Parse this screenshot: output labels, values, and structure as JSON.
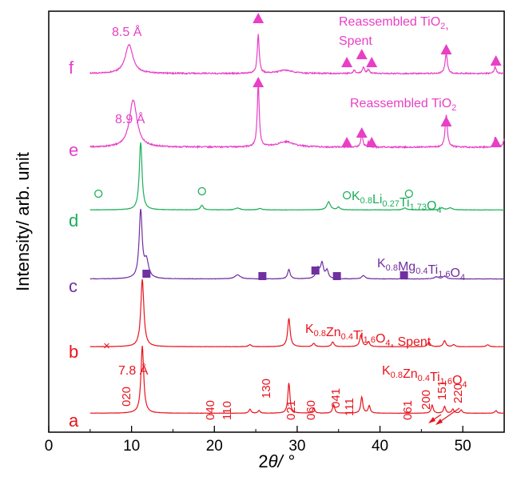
{
  "chart_data": {
    "type": "line",
    "xlabel_prefix": "2",
    "xlabel_theta": "θ",
    "xlabel_suffix": "/ °",
    "ylabel": "Intensity/ arb. unit",
    "xlim": [
      0,
      55
    ],
    "xticks": [
      "0",
      "10",
      "20",
      "30",
      "40",
      "50"
    ],
    "colors": {
      "magenta": "#e83fc6",
      "green": "#1cae5a",
      "purple": "#7030a0",
      "red": "#e8141d",
      "axis": "#000000"
    },
    "series": [
      {
        "id": "a",
        "label": "a",
        "color": "#e8141d",
        "baseline_level": 0.955,
        "scale": 0.16,
        "peaks": [
          [
            11.3,
            1.0,
            0.2
          ],
          [
            24.3,
            0.06,
            0.15
          ],
          [
            25.4,
            0.04,
            0.15
          ],
          [
            29.0,
            0.45,
            0.15
          ],
          [
            32.0,
            0.08,
            0.15
          ],
          [
            34.4,
            0.13,
            0.15
          ],
          [
            37.8,
            0.24,
            0.15
          ],
          [
            38.7,
            0.11,
            0.15
          ],
          [
            46.3,
            0.12,
            0.15
          ],
          [
            47.8,
            0.1,
            0.15
          ],
          [
            48.8,
            0.06,
            0.15
          ],
          [
            49.8,
            0.05,
            0.15
          ],
          [
            54.0,
            0.04,
            0.15
          ]
        ],
        "noise": 0.004
      },
      {
        "id": "b",
        "label": "b",
        "color": "#e8141d",
        "baseline_level": 0.797,
        "scale": 0.16,
        "peaks": [
          [
            11.3,
            1.0,
            0.22
          ],
          [
            24.3,
            0.03,
            0.2
          ],
          [
            29.0,
            0.42,
            0.18
          ],
          [
            32.0,
            0.05,
            0.18
          ],
          [
            34.3,
            0.07,
            0.18
          ],
          [
            37.7,
            0.17,
            0.18
          ],
          [
            38.6,
            0.07,
            0.18
          ],
          [
            45.9,
            0.07,
            0.18
          ],
          [
            47.8,
            0.09,
            0.18
          ],
          [
            48.9,
            0.03,
            0.18
          ],
          [
            53.0,
            0.03,
            0.18
          ]
        ],
        "noise": 0.004
      },
      {
        "id": "c",
        "label": "c",
        "color": "#7030a0",
        "baseline_level": 0.636,
        "scale": 0.16,
        "peaks": [
          [
            11.1,
            1.0,
            0.22
          ],
          [
            11.8,
            0.25,
            0.3
          ],
          [
            22.8,
            0.06,
            0.4
          ],
          [
            29.0,
            0.14,
            0.18
          ],
          [
            32.5,
            0.15,
            0.25
          ],
          [
            33.0,
            0.22,
            0.2
          ],
          [
            33.6,
            0.12,
            0.2
          ],
          [
            38.0,
            0.05,
            0.25
          ],
          [
            46.8,
            0.03,
            0.3
          ],
          [
            47.8,
            0.04,
            0.25
          ]
        ],
        "noise": 0.006
      },
      {
        "id": "d",
        "label": "d",
        "color": "#1cae5a",
        "baseline_level": 0.472,
        "scale": 0.16,
        "peaks": [
          [
            11.1,
            1.0,
            0.2
          ],
          [
            18.5,
            0.07,
            0.2
          ],
          [
            22.8,
            0.03,
            0.3
          ],
          [
            25.5,
            0.02,
            0.3
          ],
          [
            33.8,
            0.12,
            0.25
          ],
          [
            35.0,
            0.04,
            0.2
          ],
          [
            43.0,
            0.03,
            0.25
          ],
          [
            47.5,
            0.03,
            0.25
          ],
          [
            48.5,
            0.03,
            0.3
          ]
        ],
        "noise": 0.006
      },
      {
        "id": "e",
        "label": "e",
        "color": "#e83fc6",
        "baseline_level": 0.323,
        "scale": 0.16,
        "peaks": [
          [
            10.2,
            0.7,
            0.55
          ],
          [
            25.3,
            0.95,
            0.14
          ],
          [
            28.6,
            0.08,
            1.2
          ],
          [
            37.8,
            0.23,
            0.12
          ],
          [
            38.6,
            0.08,
            0.12
          ],
          [
            48.0,
            0.48,
            0.16
          ],
          [
            53.9,
            0.14,
            0.14
          ],
          [
            55.0,
            0.12,
            0.14
          ]
        ],
        "noise": 0.02
      },
      {
        "id": "f",
        "label": "f",
        "color": "#e83fc6",
        "baseline_level": 0.148,
        "scale": 0.16,
        "peaks": [
          [
            9.7,
            0.43,
            0.55
          ],
          [
            25.3,
            0.58,
            0.14
          ],
          [
            28.6,
            0.05,
            1.0
          ],
          [
            36.9,
            0.05,
            0.14
          ],
          [
            38.0,
            0.1,
            0.14
          ],
          [
            38.6,
            0.06,
            0.14
          ],
          [
            48.0,
            0.3,
            0.16
          ],
          [
            53.9,
            0.1,
            0.14
          ]
        ],
        "noise": 0.018
      }
    ],
    "sample_labels": [
      {
        "id": "f",
        "parts": [
          [
            "Reassembled TiO",
            "n"
          ],
          [
            "2",
            "sub"
          ],
          [
            ",",
            "n"
          ]
        ],
        "line2": "Spent",
        "color": "#e83fc6"
      },
      {
        "id": "e",
        "parts": [
          [
            "Reassembled TiO",
            "n"
          ],
          [
            "2",
            "sub"
          ]
        ],
        "color": "#e83fc6"
      },
      {
        "id": "d",
        "parts": [
          [
            "K",
            "n"
          ],
          [
            "0.8",
            "sub"
          ],
          [
            "Li",
            "n"
          ],
          [
            "0.27",
            "sub"
          ],
          [
            "Ti",
            "n"
          ],
          [
            "1.73",
            "sub"
          ],
          [
            "O",
            "n"
          ],
          [
            "4",
            "sub"
          ]
        ],
        "color": "#1cae5a"
      },
      {
        "id": "c",
        "parts": [
          [
            "K",
            "n"
          ],
          [
            "0.8",
            "sub"
          ],
          [
            "Mg",
            "n"
          ],
          [
            "0.4",
            "sub"
          ],
          [
            "Ti",
            "n"
          ],
          [
            "1.6",
            "sub"
          ],
          [
            "O",
            "n"
          ],
          [
            "4",
            "sub"
          ]
        ],
        "color": "#7030a0"
      },
      {
        "id": "b",
        "parts": [
          [
            "K",
            "n"
          ],
          [
            "0.8",
            "sub"
          ],
          [
            "Zn",
            "n"
          ],
          [
            "0.4",
            "sub"
          ],
          [
            "Ti",
            "n"
          ],
          [
            "1.6",
            "sub"
          ],
          [
            "O",
            "n"
          ],
          [
            "4",
            "sub"
          ],
          [
            ", Spent",
            "n"
          ]
        ],
        "color": "#e8141d"
      },
      {
        "id": "a",
        "parts": [
          [
            "K",
            "n"
          ],
          [
            "0.8",
            "sub"
          ],
          [
            "Zn",
            "n"
          ],
          [
            "0.4",
            "sub"
          ],
          [
            "Ti",
            "n"
          ],
          [
            "1.6",
            "sub"
          ],
          [
            "O",
            "n"
          ],
          [
            "4",
            "sub"
          ]
        ],
        "color": "#e8141d"
      }
    ],
    "d_spacing_labels": [
      {
        "text": "8.5 Å",
        "color": "#e83fc6"
      },
      {
        "text": "8.9 Å",
        "color": "#e83fc6"
      },
      {
        "text": "7.8 Å",
        "color": "#e8141d"
      }
    ],
    "miller_indices": [
      "020",
      "040",
      "110",
      "130",
      "021",
      "060",
      "041",
      "111",
      "061",
      "200",
      "151",
      "220"
    ],
    "markers": {
      "triangles_f": [
        25.3,
        36.0,
        37.8,
        39.0,
        48.0,
        54.0
      ],
      "triangles_e": [
        25.3,
        36.0,
        37.8,
        39.0,
        48.0,
        54.0
      ],
      "circles_d": [
        6.0,
        18.5,
        36.0,
        43.5
      ],
      "squares_c": [
        11.8,
        25.8,
        32.2,
        34.8,
        42.9
      ],
      "cross_b": [
        7.0
      ]
    }
  }
}
